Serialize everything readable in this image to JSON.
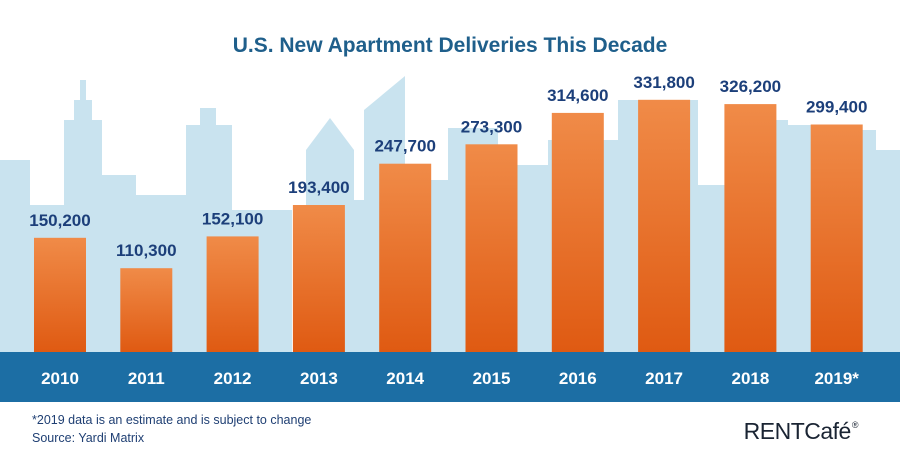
{
  "chart_data": {
    "type": "bar",
    "title": "U.S. New Apartment Deliveries This Decade",
    "categories": [
      "2010",
      "2011",
      "2012",
      "2013",
      "2014",
      "2015",
      "2016",
      "2017",
      "2018",
      "2019*"
    ],
    "values": [
      150200,
      110300,
      152100,
      193400,
      247700,
      273300,
      314600,
      331800,
      326200,
      299400
    ],
    "value_labels": [
      "150,200",
      "110,300",
      "152,100",
      "193,400",
      "247,700",
      "273,300",
      "314,600",
      "331,800",
      "326,200",
      "299,400"
    ],
    "xlabel": "",
    "ylabel": "",
    "ylim": [
      0,
      450000
    ],
    "grid": false,
    "legend": "none"
  },
  "footnote": "*2019 data is an estimate and is subject to change",
  "source": "Source: Yardi Matrix",
  "brand": {
    "name": "RENTCafé",
    "mark": "®"
  },
  "colors": {
    "title": "#1f5f8b",
    "value_label": "#1c3f7a",
    "bar_top": "#f08b48",
    "bar_bottom": "#df5a12",
    "axis_band": "#1c6ea4",
    "axis_text": "#ffffff",
    "skyline": "#c9e3ef",
    "sky": "#ffffff"
  }
}
